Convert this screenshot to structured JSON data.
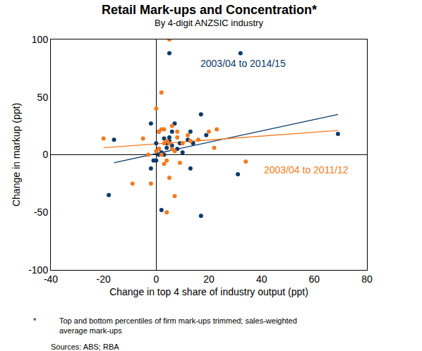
{
  "chart_data": {
    "type": "scatter",
    "title": "Retail Mark-ups and Concentration*",
    "subtitle": "By 4-digit ANZSIC industry",
    "x_label": "Change in top 4 share of industry output (ppt)",
    "y_label": "Change in markup (ppt)",
    "xlim": [
      -40,
      80
    ],
    "xticks": [
      -40,
      -20,
      0,
      20,
      40,
      60,
      80
    ],
    "ylim": [
      -100,
      100
    ],
    "yticks": [
      -100,
      -50,
      0,
      50,
      100
    ],
    "grid": false,
    "footnote": {
      "marker": "*",
      "lines": [
        "Top and bottom percentiles of firm mark-ups trimmed; sales-weighted",
        "average mark-ups"
      ]
    },
    "source": "Sources: ABS; RBA",
    "series": [
      {
        "name": "2003/04 to 2014/15",
        "color": "#0b3a6b",
        "marker": "circle",
        "x": [
          5,
          32,
          69,
          -18,
          -16,
          -2,
          1,
          5,
          7,
          9,
          12,
          13,
          17,
          19,
          2,
          3,
          1,
          0,
          -2,
          -1,
          0,
          4,
          6,
          8,
          10,
          14,
          2,
          13,
          17,
          31,
          4,
          6,
          3,
          1,
          5
        ],
        "values": [
          88,
          88,
          18,
          -35,
          13,
          27,
          20,
          15,
          27,
          10,
          13,
          20,
          35,
          17,
          2,
          0,
          5,
          -5,
          -12,
          -5,
          10,
          6,
          8,
          5,
          2,
          10,
          -48,
          -12,
          -53,
          -17,
          10,
          20,
          14,
          0,
          12
        ],
        "trend": {
          "x": [
            -16,
            69
          ],
          "values": [
            -7,
            35
          ]
        }
      },
      {
        "name": "2003/04 to 2011/12",
        "color": "#f47b20",
        "marker": "circle",
        "x": [
          -20,
          -5,
          -3,
          -9,
          -2,
          0,
          2,
          3,
          5,
          1,
          4,
          5,
          6,
          3,
          8,
          10,
          12,
          13,
          16,
          20,
          23,
          22,
          34,
          7,
          4,
          3,
          5,
          1,
          2,
          0,
          7,
          9,
          4,
          2,
          6,
          8
        ],
        "values": [
          14,
          14,
          0,
          -25,
          -25,
          40,
          54,
          22,
          100,
          20,
          12,
          10,
          25,
          10,
          20,
          10,
          17,
          12,
          13,
          20,
          22,
          6,
          -6,
          -36,
          -50,
          -8,
          -20,
          5,
          0,
          3,
          3,
          -7,
          -5,
          22,
          5,
          15
        ],
        "trend": {
          "x": [
            -20,
            69
          ],
          "values": [
            6,
            21
          ]
        }
      }
    ]
  }
}
